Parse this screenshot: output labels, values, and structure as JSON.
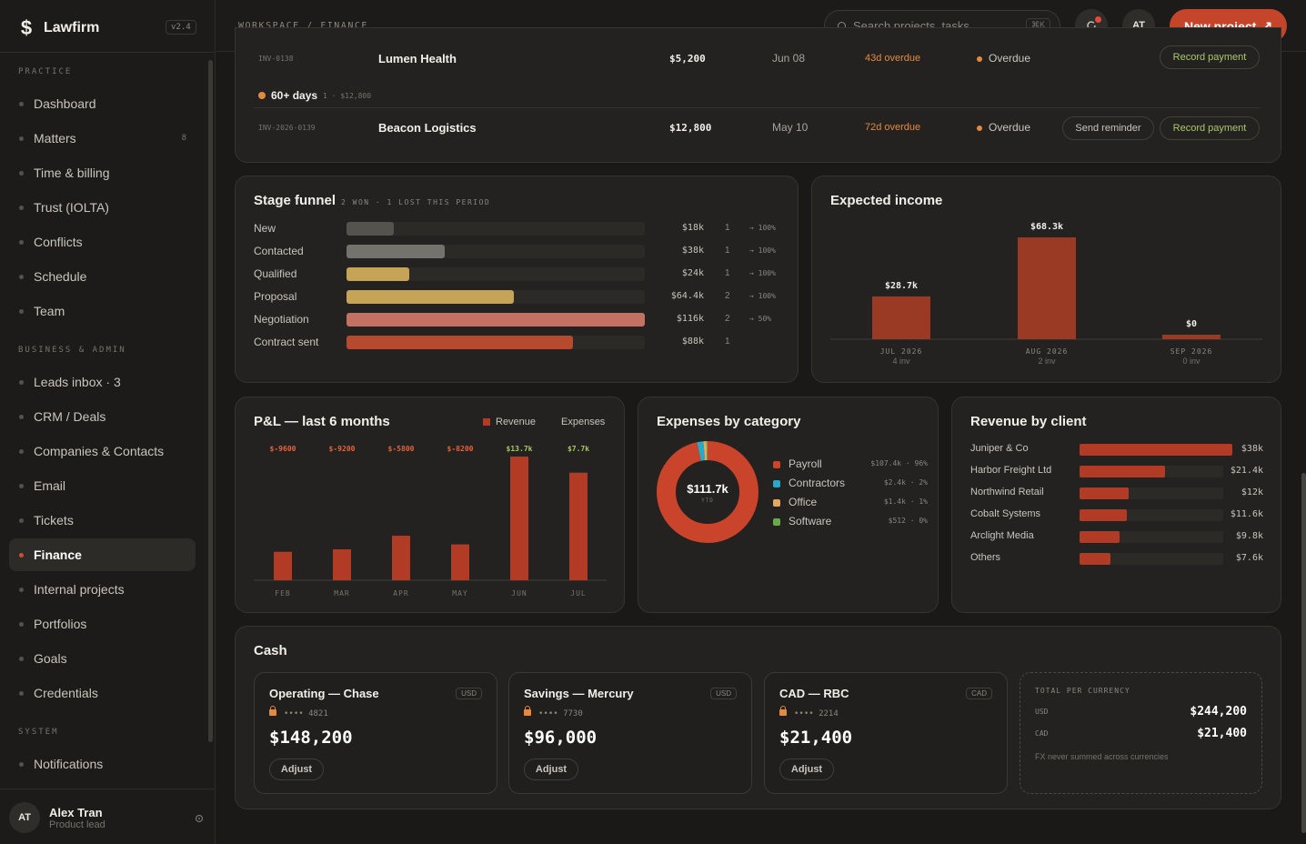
{
  "app": {
    "name": "Lawfirm",
    "version": "v2.4",
    "logo": "$"
  },
  "sidebar": {
    "sections": [
      {
        "title": "PRACTICE",
        "items": [
          {
            "label": "Dashboard"
          },
          {
            "label": "Matters",
            "count": "8"
          },
          {
            "label": "Time & billing"
          },
          {
            "label": "Trust (IOLTA)"
          },
          {
            "label": "Conflicts"
          },
          {
            "label": "Schedule"
          },
          {
            "label": "Team"
          }
        ]
      },
      {
        "title": "BUSINESS & ADMIN",
        "items": [
          {
            "label": "Leads inbox · 3"
          },
          {
            "label": "CRM / Deals"
          },
          {
            "label": "Companies & Contacts"
          },
          {
            "label": "Email"
          },
          {
            "label": "Tickets"
          },
          {
            "label": "Finance",
            "active": true
          },
          {
            "label": "Internal projects"
          },
          {
            "label": "Portfolios"
          },
          {
            "label": "Goals"
          },
          {
            "label": "Credentials"
          }
        ]
      },
      {
        "title": "SYSTEM",
        "items": [
          {
            "label": "Notifications"
          }
        ]
      }
    ],
    "user": {
      "initials": "AT",
      "name": "Alex Tran",
      "role": "Product lead"
    }
  },
  "header": {
    "breadcrumb": "WORKSPACE / FINANCE",
    "search": {
      "placeholder": "Search projects, tasks...",
      "shortcut": "⌘K"
    },
    "avatar": "AT",
    "new_button": "New project",
    "new_icon": "↗"
  },
  "invoices": {
    "rows": [
      {
        "id": "INV-0138",
        "client": "Lumen Health",
        "amount": "$5,200",
        "date": "Jun 08",
        "overdue": "43d overdue",
        "status": "Overdue",
        "actions": [
          "Record payment"
        ]
      },
      {
        "id": "INV-2026-0139",
        "client": "Beacon Logistics",
        "amount": "$12,800",
        "date": "May 10",
        "overdue": "72d overdue",
        "status": "Overdue",
        "actions": [
          "Send reminder",
          "Record payment"
        ]
      }
    ],
    "group": {
      "label": "60+ days",
      "meta": "1 · $12,800"
    }
  },
  "funnel": {
    "title": "Stage funnel",
    "subtitle": "2 WON · 1 LOST THIS PERIOD",
    "stages": [
      {
        "label": "New",
        "value": "$18k",
        "count": "1",
        "pct": "→ 100%",
        "fill": 0.16,
        "color": "#55534e"
      },
      {
        "label": "Contacted",
        "value": "$38k",
        "count": "1",
        "pct": "→ 100%",
        "fill": 0.33,
        "color": "#74726c"
      },
      {
        "label": "Qualified",
        "value": "$24k",
        "count": "1",
        "pct": "→ 100%",
        "fill": 0.21,
        "color": "#c6a457"
      },
      {
        "label": "Proposal",
        "value": "$64.4k",
        "count": "2",
        "pct": "→ 100%",
        "fill": 0.56,
        "color": "#c6a457"
      },
      {
        "label": "Negotiation",
        "value": "$116k",
        "count": "2",
        "pct": "→ 50%",
        "fill": 1.0,
        "color": "#c47062"
      },
      {
        "label": "Contract sent",
        "value": "$88k",
        "count": "1",
        "pct": "",
        "fill": 0.76,
        "color": "#b44a2e"
      }
    ]
  },
  "expected_income": {
    "title": "Expected income",
    "chart_data": {
      "type": "bar",
      "categories": [
        "JUL 2026",
        "AUG 2026",
        "SEP 2026"
      ],
      "sublabels": [
        "4 inv",
        "2 inv",
        "0 inv"
      ],
      "values": [
        28.7,
        68.3,
        0
      ],
      "labels": [
        "$28.7k",
        "$68.3k",
        "$0"
      ]
    }
  },
  "pnl": {
    "title": "P&L — last 6 months",
    "legend": [
      {
        "name": "Revenue",
        "color": "#b23b25"
      },
      {
        "name": "Expenses",
        "color": ""
      }
    ],
    "chart_data": {
      "type": "bar",
      "categories": [
        "FEB",
        "MAR",
        "APR",
        "MAY",
        "JUN",
        "JUL"
      ],
      "net_labels": [
        "$-9600",
        "$-9200",
        "$-5800",
        "$-8200",
        "$13.7k",
        "$7.7k"
      ],
      "net_colors": [
        "#e0643f",
        "#e0643f",
        "#e0643f",
        "#e0643f",
        "#a8c86a",
        "#a8c86a"
      ],
      "values": [
        0.23,
        0.25,
        0.36,
        0.29,
        1.0,
        0.87
      ]
    }
  },
  "expenses": {
    "title": "Expenses by category",
    "total": "$111.7k",
    "total_sub": "YTD",
    "chart_data": {
      "type": "pie",
      "items": [
        {
          "name": "Payroll",
          "value": "$107.4k · 96%",
          "share": 96,
          "color": "#c9442a"
        },
        {
          "name": "Contractors",
          "value": "$2.4k · 2%",
          "share": 2,
          "color": "#2aa8c4"
        },
        {
          "name": "Office",
          "value": "$1.4k · 1%",
          "share": 1,
          "color": "#e4a862"
        },
        {
          "name": "Software",
          "value": "$512 · 0%",
          "share": 0.5,
          "color": "#6aa84a"
        }
      ]
    }
  },
  "revenue_client": {
    "title": "Revenue by client",
    "chart_data": {
      "type": "bar",
      "items": [
        {
          "name": "Juniper & Co",
          "value": "$38k",
          "fill": 1.0
        },
        {
          "name": "Harbor Freight Ltd",
          "value": "$21.4k",
          "fill": 0.56
        },
        {
          "name": "Northwind Retail",
          "value": "$12k",
          "fill": 0.32
        },
        {
          "name": "Cobalt Systems",
          "value": "$11.6k",
          "fill": 0.31
        },
        {
          "name": "Arclight Media",
          "value": "$9.8k",
          "fill": 0.26
        },
        {
          "name": "Others",
          "value": "$7.6k",
          "fill": 0.2
        }
      ]
    }
  },
  "cash": {
    "title": "Cash",
    "accounts": [
      {
        "name": "Operating — Chase",
        "currency": "USD",
        "number": "•••• 4821",
        "balance": "$148,200",
        "action": "Adjust"
      },
      {
        "name": "Savings — Mercury",
        "currency": "USD",
        "number": "•••• 7730",
        "balance": "$96,000",
        "action": "Adjust"
      },
      {
        "name": "CAD — RBC",
        "currency": "CAD",
        "number": "•••• 2214",
        "balance": "$21,400",
        "action": "Adjust"
      }
    ],
    "totals": {
      "title": "TOTAL PER CURRENCY",
      "rows": [
        {
          "currency": "USD",
          "amount": "$244,200"
        },
        {
          "currency": "CAD",
          "amount": "$21,400"
        }
      ],
      "note": "FX never summed across currencies"
    }
  }
}
